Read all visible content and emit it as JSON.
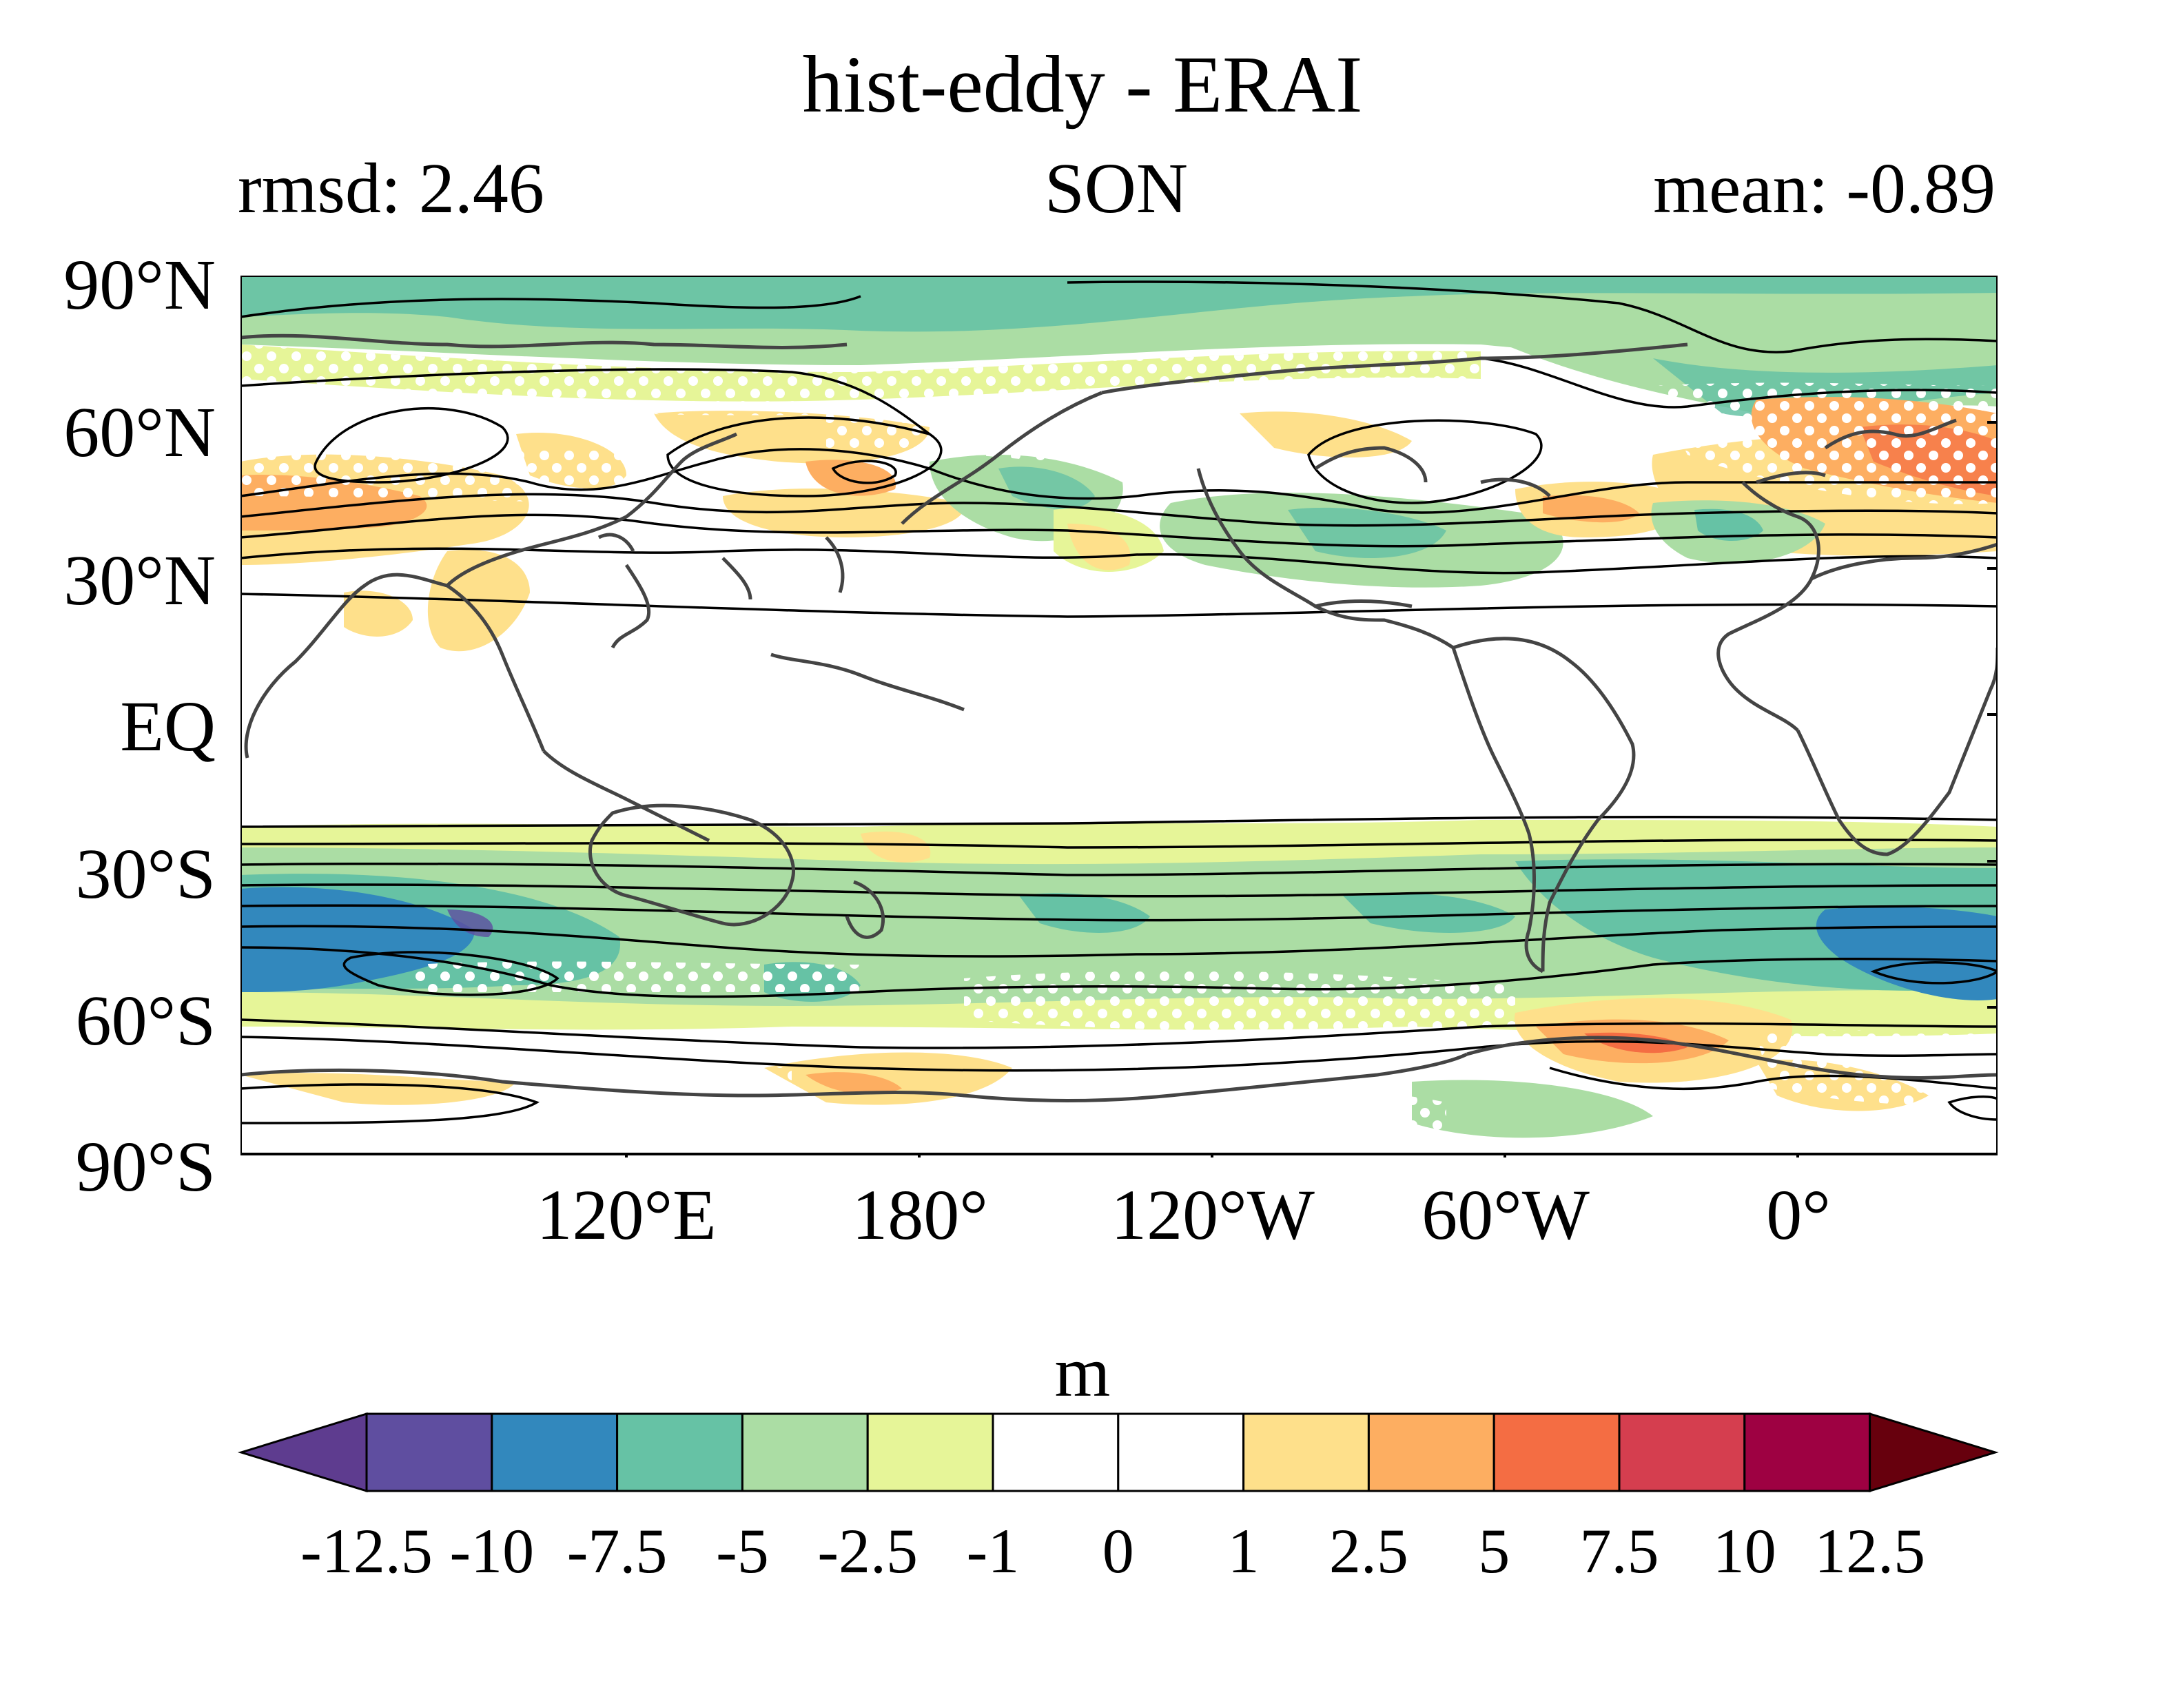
{
  "title": "hist-eddy - ERAI",
  "stats": {
    "left": "rmsd: 2.46",
    "center": "SON",
    "right": "mean: -0.89"
  },
  "axes": {
    "y_ticks": [
      "90°N",
      "60°N",
      "30°N",
      "EQ",
      "30°S",
      "60°S",
      "90°S"
    ],
    "x_ticks": [
      "120°E",
      "180°",
      "120°W",
      "60°W",
      "0°"
    ]
  },
  "colorbar": {
    "unit": "m",
    "levels": [
      "-12.5",
      "-10",
      "-7.5",
      "-5",
      "-2.5",
      "-1",
      "0",
      "1",
      "2.5",
      "5",
      "7.5",
      "10",
      "12.5"
    ],
    "colors": [
      "#5e3c8f",
      "#5f4ea0",
      "#3288bd",
      "#66c2a5",
      "#abdda4",
      "#e6f598",
      "#ffffff",
      "#ffffff",
      "#fee08b",
      "#fdae61",
      "#f46d43",
      "#d53e4f",
      "#9e0142",
      "#67000d"
    ]
  },
  "chart_data": {
    "type": "heatmap",
    "title": "hist-eddy - ERAI",
    "projection": "equirectangular global map",
    "lon_range": [
      40,
      400
    ],
    "lat_range": [
      -90,
      90
    ],
    "stats": {
      "rmsd": 2.46,
      "mean": -0.89,
      "season": "SON"
    },
    "unit": "m",
    "overlays": [
      "coastlines",
      "black contours",
      "white stipple dots"
    ]
  }
}
